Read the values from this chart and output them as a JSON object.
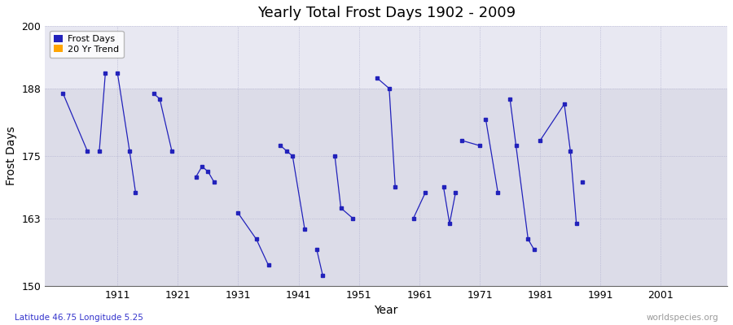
{
  "title": "Yearly Total Frost Days 1902 - 2009",
  "xlabel": "Year",
  "ylabel": "Frost Days",
  "lat_lon_label": "Latitude 46.75 Longitude 5.25",
  "source_label": "worldspecies.org",
  "ylim": [
    150,
    200
  ],
  "xlim": [
    1899,
    2012
  ],
  "yticks": [
    150,
    163,
    175,
    188,
    200
  ],
  "xticks": [
    1911,
    1921,
    1931,
    1941,
    1951,
    1961,
    1971,
    1981,
    1991,
    2001
  ],
  "line_color": "#2222bb",
  "bg_lower": "#dcdce8",
  "bg_upper": "#e8e8f2",
  "legend_entries": [
    "Frost Days",
    "20 Yr Trend"
  ],
  "legend_colors": [
    "#2222bb",
    "#ffa500"
  ],
  "segments": [
    {
      "x": [
        1902,
        1906
      ],
      "y": [
        187,
        176
      ]
    },
    {
      "x": [
        1908,
        1909
      ],
      "y": [
        176,
        191
      ]
    },
    {
      "x": [
        1911,
        1913,
        1914
      ],
      "y": [
        191,
        176,
        168
      ]
    },
    {
      "x": [
        1917,
        1918,
        1920
      ],
      "y": [
        187,
        186,
        176
      ]
    },
    {
      "x": [
        1924,
        1925,
        1926,
        1927
      ],
      "y": [
        171,
        173,
        172,
        170
      ]
    },
    {
      "x": [
        1931,
        1934,
        1936
      ],
      "y": [
        164,
        159,
        154
      ]
    },
    {
      "x": [
        1938,
        1939,
        1940,
        1942
      ],
      "y": [
        177,
        176,
        175,
        161
      ]
    },
    {
      "x": [
        1944,
        1945
      ],
      "y": [
        157,
        152
      ]
    },
    {
      "x": [
        1947,
        1948,
        1950
      ],
      "y": [
        175,
        165,
        163
      ]
    },
    {
      "x": [
        1954,
        1956,
        1957
      ],
      "y": [
        190,
        188,
        169
      ]
    },
    {
      "x": [
        1960,
        1962
      ],
      "y": [
        163,
        168
      ]
    },
    {
      "x": [
        1965,
        1966,
        1967
      ],
      "y": [
        169,
        162,
        168
      ]
    },
    {
      "x": [
        1968,
        1971
      ],
      "y": [
        178,
        177
      ]
    },
    {
      "x": [
        1972,
        1974
      ],
      "y": [
        182,
        168
      ]
    },
    {
      "x": [
        1976,
        1977,
        1979,
        1980
      ],
      "y": [
        186,
        177,
        159,
        157
      ]
    },
    {
      "x": [
        1981,
        1985,
        1986,
        1987
      ],
      "y": [
        178,
        185,
        176,
        162
      ]
    },
    {
      "x": [
        1988
      ],
      "y": [
        170
      ]
    }
  ]
}
